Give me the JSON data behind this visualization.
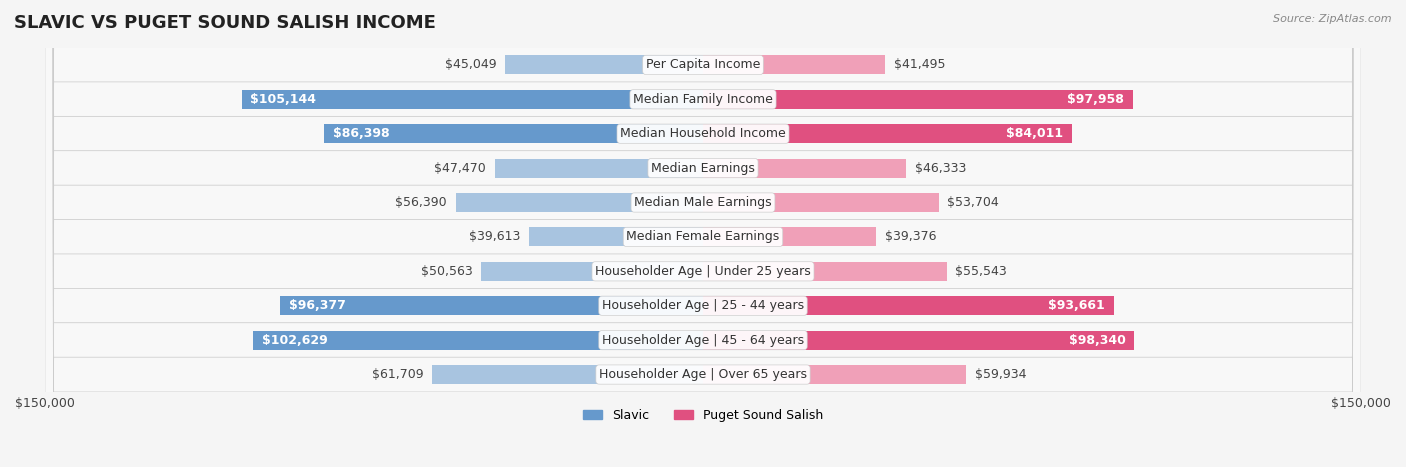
{
  "title": "SLAVIC VS PUGET SOUND SALISH INCOME",
  "source": "Source: ZipAtlas.com",
  "categories": [
    "Per Capita Income",
    "Median Family Income",
    "Median Household Income",
    "Median Earnings",
    "Median Male Earnings",
    "Median Female Earnings",
    "Householder Age | Under 25 years",
    "Householder Age | 25 - 44 years",
    "Householder Age | 45 - 64 years",
    "Householder Age | Over 65 years"
  ],
  "slavic_values": [
    45049,
    105144,
    86398,
    47470,
    56390,
    39613,
    50563,
    96377,
    102629,
    61709
  ],
  "salish_values": [
    41495,
    97958,
    84011,
    46333,
    53704,
    39376,
    55543,
    93661,
    98340,
    59934
  ],
  "slavic_labels": [
    "$45,049",
    "$105,144",
    "$86,398",
    "$47,470",
    "$56,390",
    "$39,613",
    "$50,563",
    "$96,377",
    "$102,629",
    "$61,709"
  ],
  "salish_labels": [
    "$41,495",
    "$97,958",
    "$84,011",
    "$46,333",
    "$53,704",
    "$39,376",
    "$55,543",
    "$93,661",
    "$98,340",
    "$59,934"
  ],
  "slavic_color_normal": "#a8c4e0",
  "slavic_color_highlight": "#6699cc",
  "salish_color_normal": "#f0a0b8",
  "salish_color_highlight": "#e05080",
  "max_value": 150000,
  "legend_slavic": "Slavic",
  "legend_salish": "Puget Sound Salish",
  "background_color": "#f5f5f5",
  "row_bg_color": "#ffffff",
  "alt_row_bg_color": "#f0f0f0",
  "label_fontsize": 9,
  "title_fontsize": 13,
  "highlight_threshold": 80000
}
